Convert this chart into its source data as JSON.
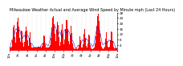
{
  "title": "Milwaukee Weather Actual and Average Wind Speed by Minute mph (Last 24 Hours)",
  "title_fontsize": 3.5,
  "background_color": "#ffffff",
  "bar_color": "#ff0000",
  "line_color": "#0000cc",
  "num_points": 1440,
  "ylim": [
    0,
    28
  ],
  "yticks": [
    4,
    8,
    12,
    16,
    20,
    24,
    28
  ],
  "ytick_labels": [
    "4",
    "8",
    "12",
    "16",
    "20",
    "24",
    "28"
  ],
  "ylabel_fontsize": 3.0,
  "xlabel_fontsize": 2.8,
  "grid_color": "#bbbbbb",
  "grid_style": "dotted",
  "spike_centers": [
    55,
    110,
    160,
    220,
    270,
    460,
    580,
    640,
    700,
    760,
    820,
    940,
    1000,
    1060,
    1180,
    1290,
    1360
  ],
  "spike_heights": [
    18,
    22,
    14,
    16,
    12,
    10,
    24,
    20,
    18,
    22,
    16,
    10,
    14,
    12,
    26,
    12,
    14
  ],
  "spike_widths": [
    30,
    40,
    25,
    35,
    20,
    25,
    45,
    35,
    30,
    40,
    30,
    20,
    30,
    25,
    50,
    25,
    30
  ],
  "base_wind": 1.5,
  "seed": 77
}
